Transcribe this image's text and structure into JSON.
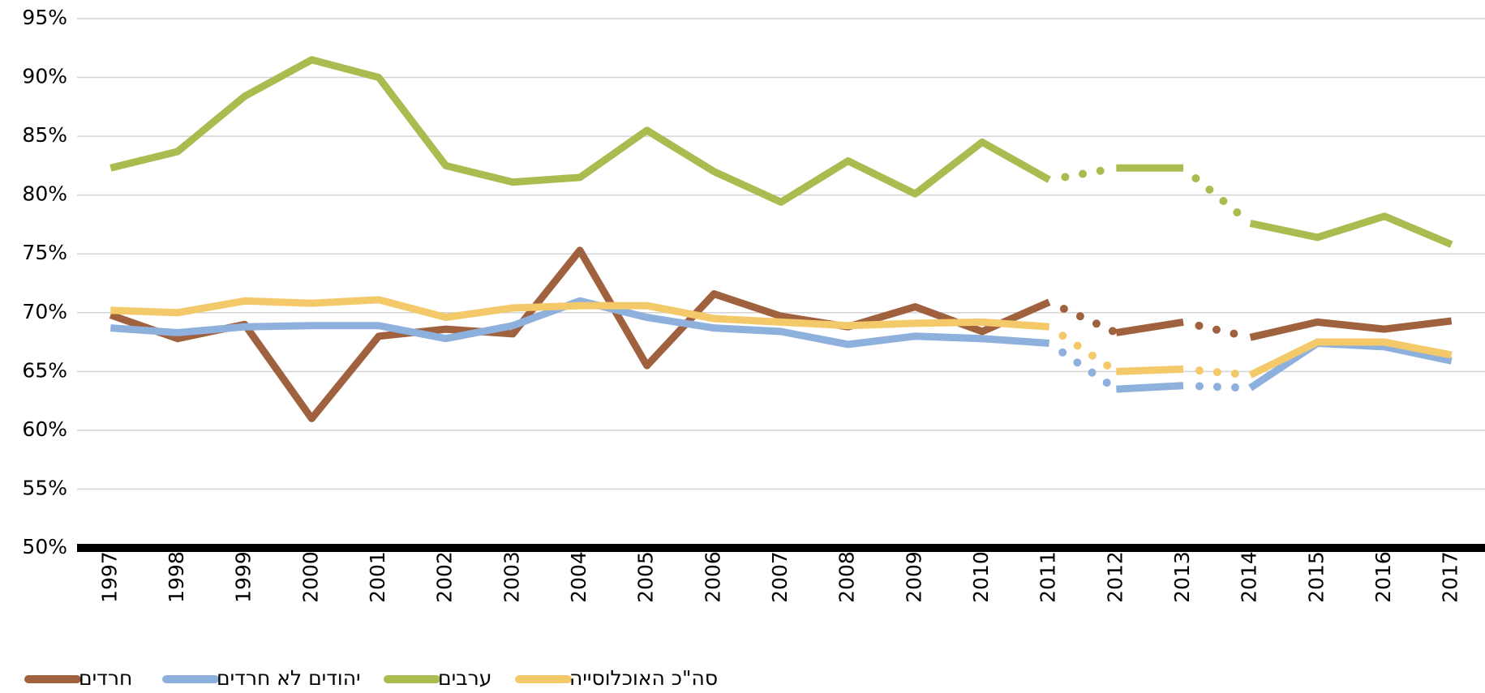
{
  "chart_data": {
    "type": "line",
    "categories": [
      "1997",
      "1998",
      "1999",
      "2000",
      "2001",
      "2002",
      "2003",
      "2004",
      "2005",
      "2006",
      "2007",
      "2008",
      "2009",
      "2010",
      "2011",
      "2012",
      "2013",
      "2014",
      "2015",
      "2016",
      "2017"
    ],
    "series": [
      {
        "name": "חרדים",
        "color": "#a0613f",
        "values": [
          69.8,
          67.8,
          69.0,
          61.0,
          68.0,
          68.6,
          68.2,
          75.3,
          65.5,
          71.6,
          69.7,
          68.8,
          70.5,
          68.4,
          70.9,
          68.3,
          69.2,
          67.9,
          69.2,
          68.6,
          69.3
        ]
      },
      {
        "name": "יהודים לא חרדים",
        "color": "#8eb0dc",
        "values": [
          68.7,
          68.3,
          68.8,
          68.9,
          68.9,
          67.8,
          68.9,
          71.0,
          69.6,
          68.7,
          68.4,
          67.3,
          68.0,
          67.8,
          67.4,
          63.5,
          63.8,
          63.6,
          67.4,
          67.1,
          65.9
        ]
      },
      {
        "name": "ערבים",
        "color": "#a9bc4f",
        "values": [
          82.3,
          83.7,
          88.4,
          91.5,
          90.0,
          82.5,
          81.1,
          81.5,
          85.5,
          82.0,
          79.4,
          82.9,
          80.1,
          84.5,
          81.3,
          82.3,
          82.3,
          77.6,
          76.4,
          78.2,
          75.8
        ]
      },
      {
        "name": "סה\"כ האוכלוסייה",
        "color": "#f4c96a",
        "values": [
          70.2,
          70.0,
          71.0,
          70.8,
          71.1,
          69.6,
          70.4,
          70.6,
          70.6,
          69.5,
          69.2,
          68.9,
          69.1,
          69.2,
          68.8,
          65.0,
          65.2,
          64.7,
          67.5,
          67.5,
          66.4
        ]
      }
    ],
    "dotted_between": [
      [
        "2011",
        "2012"
      ],
      [
        "2013",
        "2014"
      ]
    ],
    "ylim": [
      50,
      95
    ],
    "yticks": [
      {
        "value": 50,
        "label": "50%"
      },
      {
        "value": 55,
        "label": "55%"
      },
      {
        "value": 60,
        "label": "60%"
      },
      {
        "value": 65,
        "label": "65%"
      },
      {
        "value": 70,
        "label": "70%"
      },
      {
        "value": 75,
        "label": "75%"
      },
      {
        "value": 80,
        "label": "80%"
      },
      {
        "value": 85,
        "label": "85%"
      },
      {
        "value": 90,
        "label": "90%"
      },
      {
        "value": 95,
        "label": "95%"
      }
    ],
    "grid": true,
    "legend": "bottom-left"
  }
}
